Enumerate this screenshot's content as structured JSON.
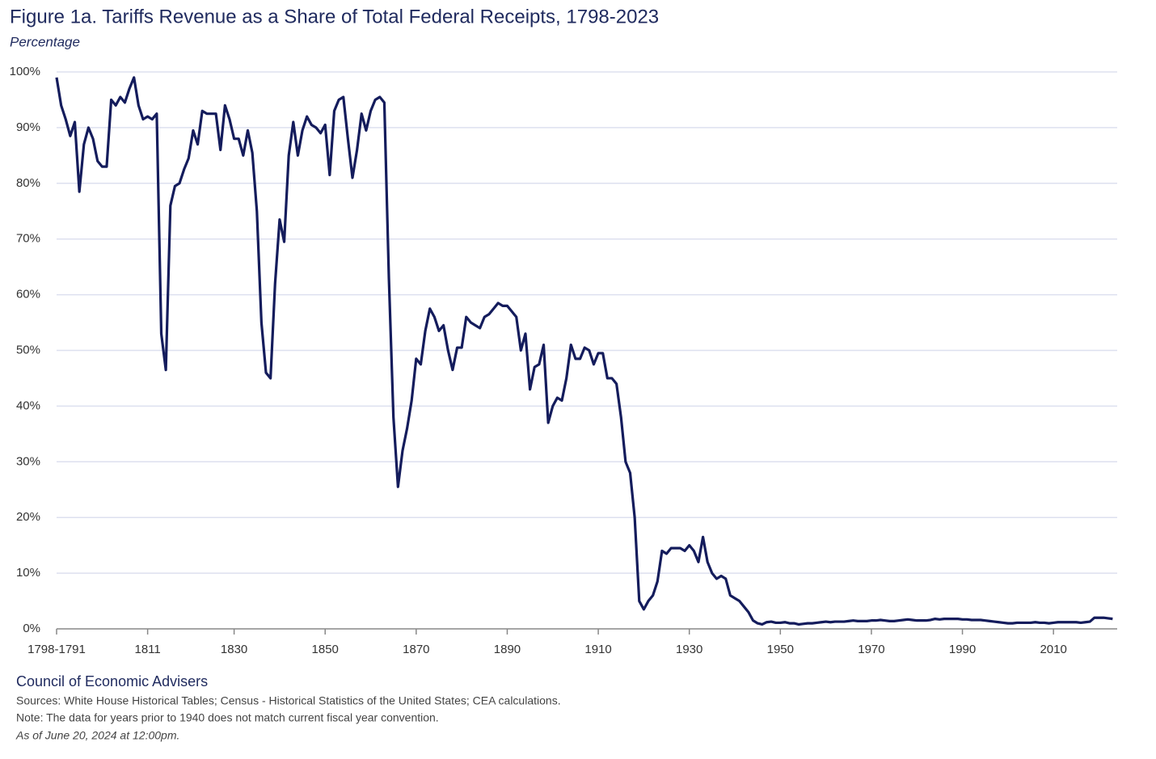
{
  "chart_data": {
    "type": "line",
    "title": "Figure 1a. Tariffs Revenue as a Share of Total Federal Receipts, 1798-2023",
    "subtitle": "Percentage",
    "source_org": "Council of Economic Advisers",
    "sources": "Sources: White House Historical Tables; Census - Historical Statistics of the United States; CEA calculations.",
    "note": "Note: The data for years prior to 1940 does not match current fiscal year convention.",
    "as_of": "As of June 20, 2024 at 12:00pm.",
    "color": "#141c5c",
    "grid": true,
    "xlim": [
      1791,
      2024
    ],
    "ylim": [
      0,
      100
    ],
    "xticks": [
      {
        "value": 1791,
        "label": "1798-1791"
      },
      1811,
      1830,
      1850,
      1870,
      1890,
      1910,
      1930,
      1950,
      1970,
      1990,
      2010
    ],
    "yticks": [
      {
        "value": 0,
        "label": "0%"
      },
      {
        "value": 10,
        "label": "10%"
      },
      {
        "value": 20,
        "label": "20%"
      },
      {
        "value": 30,
        "label": "30%"
      },
      {
        "value": 40,
        "label": "40%"
      },
      {
        "value": 50,
        "label": "50%"
      },
      {
        "value": 60,
        "label": "60%"
      },
      {
        "value": 70,
        "label": "70%"
      },
      {
        "value": 80,
        "label": "80%"
      },
      {
        "value": 90,
        "label": "90%"
      },
      {
        "value": 100,
        "label": "100%"
      }
    ],
    "x": [
      1791,
      1792,
      1793,
      1794,
      1795,
      1796,
      1797,
      1798,
      1799,
      1800,
      1801,
      1802,
      1803,
      1804,
      1805,
      1806,
      1807,
      1808,
      1809,
      1810,
      1811,
      1812,
      1813,
      1814,
      1815,
      1816,
      1817,
      1818,
      1819,
      1820,
      1821,
      1822,
      1823,
      1824,
      1825,
      1826,
      1827,
      1828,
      1829,
      1830,
      1831,
      1832,
      1833,
      1834,
      1835,
      1836,
      1837,
      1838,
      1839,
      1840,
      1841,
      1842,
      1843,
      1844,
      1845,
      1846,
      1847,
      1848,
      1849,
      1850,
      1851,
      1852,
      1853,
      1854,
      1855,
      1856,
      1857,
      1858,
      1859,
      1860,
      1861,
      1862,
      1863,
      1864,
      1865,
      1866,
      1867,
      1868,
      1869,
      1870,
      1871,
      1872,
      1873,
      1874,
      1875,
      1876,
      1877,
      1878,
      1879,
      1880,
      1881,
      1882,
      1883,
      1884,
      1885,
      1886,
      1887,
      1888,
      1889,
      1890,
      1891,
      1892,
      1893,
      1894,
      1895,
      1896,
      1897,
      1898,
      1899,
      1900,
      1901,
      1902,
      1903,
      1904,
      1905,
      1906,
      1907,
      1908,
      1909,
      1910,
      1911,
      1912,
      1913,
      1914,
      1915,
      1916,
      1917,
      1918,
      1919,
      1920,
      1921,
      1922,
      1923,
      1924,
      1925,
      1926,
      1927,
      1928,
      1929,
      1930,
      1931,
      1932,
      1933,
      1934,
      1935,
      1936,
      1937,
      1938,
      1939,
      1940,
      1941,
      1942,
      1943,
      1944,
      1945,
      1946,
      1947,
      1948,
      1949,
      1950,
      1951,
      1952,
      1953,
      1954,
      1955,
      1956,
      1957,
      1958,
      1959,
      1960,
      1961,
      1962,
      1963,
      1964,
      1965,
      1966,
      1967,
      1968,
      1969,
      1970,
      1971,
      1972,
      1973,
      1974,
      1975,
      1976,
      1977,
      1978,
      1979,
      1980,
      1981,
      1982,
      1983,
      1984,
      1985,
      1986,
      1987,
      1988,
      1989,
      1990,
      1991,
      1992,
      1993,
      1994,
      1995,
      1996,
      1997,
      1998,
      1999,
      2000,
      2001,
      2002,
      2003,
      2004,
      2005,
      2006,
      2007,
      2008,
      2009,
      2010,
      2011,
      2012,
      2013,
      2014,
      2015,
      2016,
      2017,
      2018,
      2019,
      2020,
      2021,
      2022,
      2023
    ],
    "values": [
      99,
      94,
      91.5,
      88.5,
      91,
      78.5,
      87,
      90,
      88,
      84,
      83,
      83,
      95,
      94,
      95.5,
      94.5,
      97,
      99,
      94,
      91.5,
      92,
      91.5,
      92.5,
      53,
      46.5,
      76,
      79.5,
      80,
      82.5,
      84.5,
      89.5,
      87,
      93,
      92.5,
      92.5,
      92.5,
      86,
      94,
      91.5,
      88,
      88,
      85,
      89.5,
      85.5,
      75,
      55,
      46,
      45,
      62,
      73.5,
      69.5,
      85,
      91,
      85,
      89.5,
      92,
      90.5,
      90,
      89,
      90.5,
      81.5,
      93,
      95,
      95.5,
      88,
      81,
      86,
      92.5,
      89.5,
      93,
      95,
      95.5,
      94.5,
      63,
      38,
      25.5,
      32,
      36,
      41,
      48.5,
      47.5,
      53.5,
      57.5,
      56,
      53.5,
      54.5,
      50,
      46.5,
      50.5,
      50.5,
      56,
      55,
      54.5,
      54,
      56,
      56.5,
      57.5,
      58.5,
      58,
      58,
      57,
      56,
      50,
      53,
      43,
      47,
      47.5,
      51,
      37,
      40,
      41.5,
      41,
      45,
      51,
      48.5,
      48.5,
      50.5,
      50,
      47.5,
      49.5,
      49.5,
      45,
      45,
      44,
      38,
      30,
      28,
      20,
      5,
      3.5,
      5,
      6,
      8.5,
      14,
      13.5,
      14.5,
      14.5,
      14.5,
      14,
      15,
      14,
      12,
      16.5,
      12,
      10,
      9,
      9.5,
      9,
      6,
      5.5,
      5,
      4,
      3,
      1.5,
      1,
      0.8,
      1.2,
      1.3,
      1.1,
      1.1,
      1.2,
      1,
      1,
      0.8,
      0.9,
      1,
      1,
      1.1,
      1.2,
      1.3,
      1.2,
      1.3,
      1.3,
      1.3,
      1.4,
      1.5,
      1.4,
      1.4,
      1.4,
      1.5,
      1.5,
      1.6,
      1.5,
      1.4,
      1.4,
      1.5,
      1.6,
      1.7,
      1.6,
      1.5,
      1.5,
      1.5,
      1.6,
      1.8,
      1.7,
      1.8,
      1.8,
      1.8,
      1.8,
      1.7,
      1.7,
      1.6,
      1.6,
      1.6,
      1.5,
      1.4,
      1.3,
      1.2,
      1.1,
      1,
      1,
      1.1,
      1.1,
      1.1,
      1.1,
      1.2,
      1.1,
      1.1,
      1,
      1.1,
      1.2,
      1.2,
      1.2,
      1.2,
      1.2,
      1.1,
      1.2,
      1.3,
      2,
      2,
      2,
      1.9,
      1.8
    ]
  }
}
